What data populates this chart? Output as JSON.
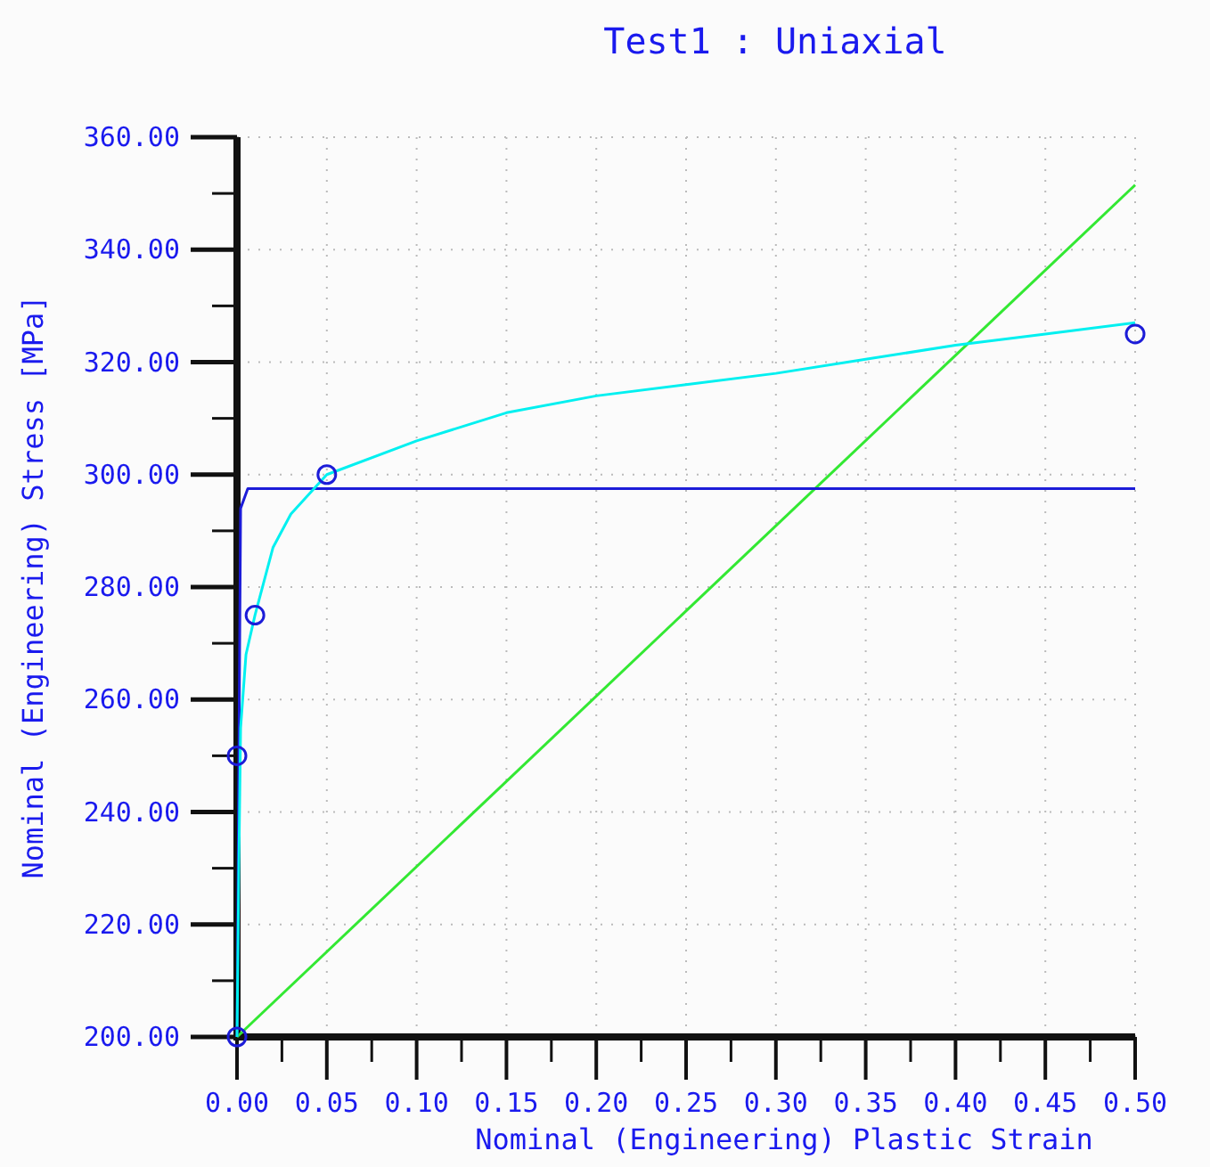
{
  "chart_data": {
    "type": "line",
    "title": "Test1 : Uniaxial",
    "xlabel": "Nominal (Engineering) Plastic Strain",
    "ylabel": "Nominal (Engineering) Stress [MPa]",
    "xlim": [
      0,
      0.5
    ],
    "ylim": [
      200,
      360
    ],
    "xticks": [
      {
        "value": 0,
        "label": "0.00"
      },
      {
        "value": 0.025,
        "label": null
      },
      {
        "value": 0.05,
        "label": "0.05"
      },
      {
        "value": 0.075,
        "label": null
      },
      {
        "value": 0.1,
        "label": "0.10"
      },
      {
        "value": 0.125,
        "label": null
      },
      {
        "value": 0.15,
        "label": "0.15"
      },
      {
        "value": 0.175,
        "label": null
      },
      {
        "value": 0.2,
        "label": "0.20"
      },
      {
        "value": 0.225,
        "label": null
      },
      {
        "value": 0.25,
        "label": "0.25"
      },
      {
        "value": 0.275,
        "label": null
      },
      {
        "value": 0.3,
        "label": "0.30"
      },
      {
        "value": 0.325,
        "label": null
      },
      {
        "value": 0.35,
        "label": "0.35"
      },
      {
        "value": 0.375,
        "label": null
      },
      {
        "value": 0.4,
        "label": "0.40"
      },
      {
        "value": 0.425,
        "label": null
      },
      {
        "value": 0.45,
        "label": "0.45"
      },
      {
        "value": 0.475,
        "label": null
      },
      {
        "value": 0.5,
        "label": "0.50"
      }
    ],
    "yticks": [
      {
        "value": 200,
        "label": "200.00"
      },
      {
        "value": 210,
        "label": null
      },
      {
        "value": 220,
        "label": "220.00"
      },
      {
        "value": 230,
        "label": null
      },
      {
        "value": 240,
        "label": "240.00"
      },
      {
        "value": 250,
        "label": null
      },
      {
        "value": 260,
        "label": "260.00"
      },
      {
        "value": 270,
        "label": null
      },
      {
        "value": 280,
        "label": "280.00"
      },
      {
        "value": 290,
        "label": null
      },
      {
        "value": 300,
        "label": "300.00"
      },
      {
        "value": 310,
        "label": null
      },
      {
        "value": 320,
        "label": "320.00"
      },
      {
        "value": 330,
        "label": null
      },
      {
        "value": 340,
        "label": "340.00"
      },
      {
        "value": 350,
        "label": null
      },
      {
        "value": 360,
        "label": "360.00"
      }
    ],
    "grid": true,
    "marker": "none",
    "line_style": "solid",
    "series": [
      {
        "color": "#33e833",
        "x": [
          0,
          0.5
        ],
        "values": [
          200,
          351.5
        ]
      },
      {
        "color": "#1c1cd8",
        "x": [
          0,
          0.002,
          0.006,
          0.5
        ],
        "values": [
          200,
          294,
          297.5,
          297.5
        ]
      },
      {
        "color": "#00f0f0",
        "x": [
          0,
          0.001,
          0.002,
          0.005,
          0.01,
          0.02,
          0.03,
          0.05,
          0.1,
          0.15,
          0.2,
          0.25,
          0.3,
          0.35,
          0.4,
          0.45,
          0.5
        ],
        "values": [
          200,
          230,
          255,
          268,
          275,
          287,
          293,
          300,
          306,
          311,
          314,
          316,
          318,
          320.5,
          323,
          325,
          327
        ]
      },
      {
        "type": "scatter",
        "marker": "circle",
        "color": "#1c1cd8",
        "x": [
          0,
          0,
          0.01,
          0.05,
          0.5
        ],
        "values": [
          200,
          250,
          275,
          300,
          325
        ]
      }
    ]
  }
}
